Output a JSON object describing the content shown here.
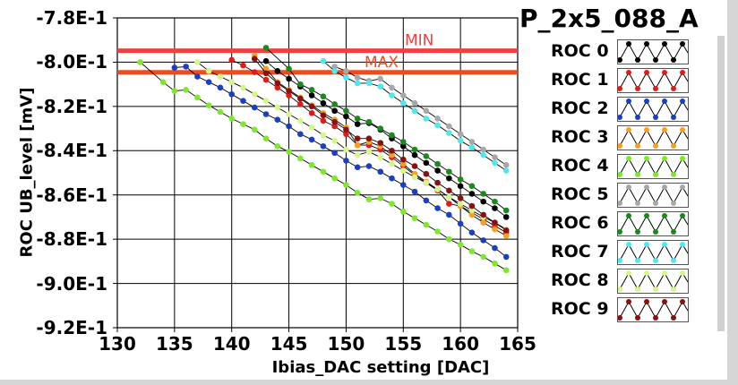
{
  "chart_data": {
    "type": "line",
    "title": "P_2x5_088_A",
    "xlabel": "Ibias_DAC setting [DAC]",
    "ylabel": "ROC UB_level [mV]",
    "xlim": [
      130,
      165
    ],
    "ylim": [
      -0.92,
      -0.78
    ],
    "xticks": [
      130,
      135,
      140,
      145,
      150,
      155,
      160,
      165
    ],
    "xtick_labels": [
      "130",
      "135",
      "140",
      "145",
      "150",
      "155",
      "160",
      "165"
    ],
    "yticks": [
      -0.78,
      -0.8,
      -0.82,
      -0.84,
      -0.86,
      -0.88,
      -0.9,
      -0.92
    ],
    "ytick_labels": [
      "-7.8E-1",
      "-8.0E-1",
      "-8.2E-1",
      "-8.4E-1",
      "-8.6E-1",
      "-8.8E-1",
      "-9.0E-1",
      "-9.2E-1"
    ],
    "grid": true,
    "legend_position": "right",
    "reference_lines": [
      {
        "label": "MIN",
        "value": -0.7948,
        "color": "#f04040"
      },
      {
        "label": "MAX",
        "value": -0.8046,
        "color": "#f04a20"
      }
    ],
    "series": [
      {
        "name": "ROC 0",
        "color": "#000000",
        "x": [
          143,
          144,
          145,
          146,
          147,
          148,
          149,
          150,
          151,
          152,
          153,
          154,
          155,
          156,
          157,
          158,
          159,
          160,
          161,
          162,
          163,
          164
        ],
        "y": [
          -0.7995,
          -0.804,
          -0.8075,
          -0.811,
          -0.815,
          -0.8185,
          -0.822,
          -0.8245,
          -0.828,
          -0.8275,
          -0.8305,
          -0.8345,
          -0.838,
          -0.842,
          -0.8455,
          -0.849,
          -0.8525,
          -0.856,
          -0.8595,
          -0.863,
          -0.866,
          -0.87
        ]
      },
      {
        "name": "ROC 1",
        "color": "#e21a1a",
        "x": [
          140,
          141,
          142,
          143,
          144,
          145,
          146,
          147,
          148,
          149,
          150,
          151,
          152,
          153,
          154,
          155,
          156,
          157,
          158,
          159,
          160,
          161,
          162,
          163,
          164
        ],
        "y": [
          -0.799,
          -0.8015,
          -0.8045,
          -0.808,
          -0.8115,
          -0.815,
          -0.819,
          -0.823,
          -0.8265,
          -0.829,
          -0.8325,
          -0.8375,
          -0.8375,
          -0.8395,
          -0.843,
          -0.847,
          -0.851,
          -0.8545,
          -0.858,
          -0.864,
          -0.865,
          -0.868,
          -0.871,
          -0.874,
          -0.877
        ]
      },
      {
        "name": "ROC 2",
        "color": "#1a3fc4",
        "x": [
          135,
          136,
          137,
          138,
          139,
          140,
          141,
          142,
          143,
          144,
          145,
          146,
          147,
          148,
          149,
          150,
          151,
          152,
          153,
          154,
          155,
          156,
          157,
          158,
          159,
          160,
          161,
          162,
          163,
          164
        ],
        "y": [
          -0.8025,
          -0.802,
          -0.8065,
          -0.809,
          -0.8115,
          -0.8145,
          -0.8175,
          -0.8205,
          -0.8235,
          -0.826,
          -0.829,
          -0.8325,
          -0.835,
          -0.838,
          -0.841,
          -0.8445,
          -0.8475,
          -0.847,
          -0.8495,
          -0.8525,
          -0.8555,
          -0.8585,
          -0.8625,
          -0.866,
          -0.869,
          -0.873,
          -0.877,
          -0.8805,
          -0.884,
          -0.888
        ]
      },
      {
        "name": "ROC 3",
        "color": "#f5a020",
        "x": [
          142,
          143,
          144,
          145,
          146,
          147,
          148,
          149,
          150,
          151,
          152,
          153,
          154,
          155,
          156,
          157,
          158,
          159,
          160,
          161,
          162,
          163,
          164
        ],
        "y": [
          -0.797,
          -0.803,
          -0.809,
          -0.8125,
          -0.816,
          -0.8195,
          -0.823,
          -0.826,
          -0.8295,
          -0.8375,
          -0.836,
          -0.838,
          -0.842,
          -0.846,
          -0.8505,
          -0.854,
          -0.8575,
          -0.861,
          -0.865,
          -0.869,
          -0.8725,
          -0.8755,
          -0.8785
        ]
      },
      {
        "name": "ROC 4",
        "color": "#7ee82a",
        "x": [
          132,
          134,
          135,
          136,
          137,
          138,
          139,
          140,
          141,
          142,
          143,
          144,
          145,
          146,
          147,
          148,
          149,
          150,
          151,
          152,
          153,
          154,
          155,
          156,
          157,
          158,
          159,
          160,
          161,
          162,
          163,
          164
        ],
        "y": [
          -0.8,
          -0.809,
          -0.813,
          -0.8125,
          -0.816,
          -0.8195,
          -0.8225,
          -0.8255,
          -0.828,
          -0.8305,
          -0.8345,
          -0.838,
          -0.8405,
          -0.8435,
          -0.8465,
          -0.8495,
          -0.8525,
          -0.8555,
          -0.859,
          -0.862,
          -0.8615,
          -0.864,
          -0.8675,
          -0.8705,
          -0.8735,
          -0.8765,
          -0.88,
          -0.8825,
          -0.8855,
          -0.888,
          -0.891,
          -0.894
        ]
      },
      {
        "name": "ROC 5",
        "color": "#a8a8a8",
        "x": [
          149,
          150,
          151,
          152,
          153,
          154,
          155,
          156,
          157,
          158,
          159,
          160,
          161,
          162,
          163,
          164
        ],
        "y": [
          -0.802,
          -0.804,
          -0.807,
          -0.8085,
          -0.8075,
          -0.8115,
          -0.815,
          -0.8185,
          -0.822,
          -0.8255,
          -0.829,
          -0.8325,
          -0.836,
          -0.8395,
          -0.843,
          -0.8465
        ]
      },
      {
        "name": "ROC 6",
        "color": "#1a8a1a",
        "x": [
          143,
          145,
          146,
          147,
          148,
          149,
          150,
          151,
          152,
          153,
          154,
          155,
          156,
          157,
          158,
          159,
          160,
          161,
          162,
          163,
          164
        ],
        "y": [
          -0.7935,
          -0.803,
          -0.81,
          -0.8125,
          -0.8155,
          -0.819,
          -0.822,
          -0.8255,
          -0.827,
          -0.83,
          -0.833,
          -0.836,
          -0.8395,
          -0.8425,
          -0.846,
          -0.8495,
          -0.853,
          -0.856,
          -0.8595,
          -0.863,
          -0.867
        ]
      },
      {
        "name": "ROC 7",
        "color": "#50e8f0",
        "x": [
          148,
          149,
          150,
          151,
          152,
          153,
          154,
          155,
          156,
          157,
          158,
          159,
          160,
          161,
          162,
          163,
          164
        ],
        "y": [
          -0.7995,
          -0.804,
          -0.807,
          -0.8095,
          -0.8095,
          -0.811,
          -0.815,
          -0.8185,
          -0.822,
          -0.8255,
          -0.8285,
          -0.832,
          -0.8355,
          -0.8385,
          -0.842,
          -0.8455,
          -0.849
        ]
      },
      {
        "name": "ROC 8",
        "color": "#d6f58a",
        "x": [
          137,
          138,
          139,
          140,
          141,
          142,
          143,
          144,
          145,
          146,
          147,
          148,
          149,
          150,
          151,
          152,
          153,
          154,
          155,
          156,
          157,
          158,
          159,
          160,
          161,
          162,
          163,
          164
        ],
        "y": [
          -0.8,
          -0.804,
          -0.8065,
          -0.809,
          -0.8115,
          -0.8145,
          -0.8175,
          -0.8205,
          -0.8235,
          -0.8265,
          -0.8295,
          -0.833,
          -0.8355,
          -0.8395,
          -0.842,
          -0.8405,
          -0.843,
          -0.846,
          -0.849,
          -0.852,
          -0.8545,
          -0.8575,
          -0.861,
          -0.864,
          -0.867,
          -0.87,
          -0.8725,
          -0.8755
        ]
      },
      {
        "name": "ROC 9",
        "color": "#8a1010",
        "x": [
          142,
          143,
          144,
          145,
          146,
          147,
          148,
          149,
          150,
          151,
          152,
          153,
          154,
          155,
          156,
          157,
          158,
          159,
          160,
          161,
          162,
          163,
          164
        ],
        "y": [
          -0.7985,
          -0.805,
          -0.8095,
          -0.813,
          -0.8165,
          -0.82,
          -0.824,
          -0.827,
          -0.8305,
          -0.8345,
          -0.8345,
          -0.8365,
          -0.84,
          -0.844,
          -0.847,
          -0.8505,
          -0.8545,
          -0.858,
          -0.8615,
          -0.865,
          -0.869,
          -0.8725,
          -0.876
        ]
      }
    ]
  }
}
